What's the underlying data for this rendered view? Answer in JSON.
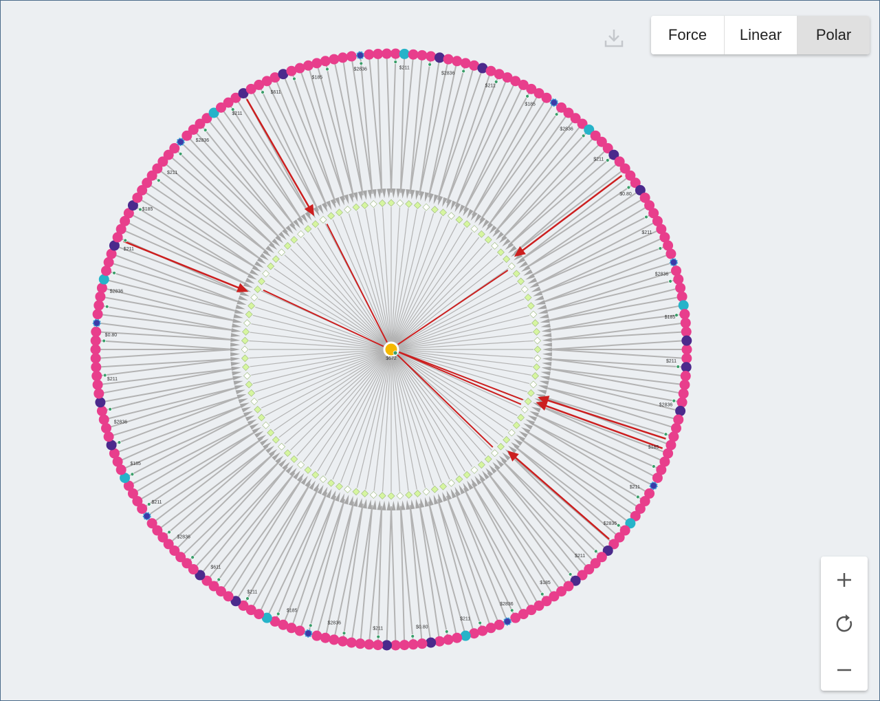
{
  "toolbar": {
    "buttons": [
      "Force",
      "Linear",
      "Polar"
    ],
    "active": 2
  },
  "graph": {
    "center_label": "$672",
    "node_labels": [
      "$211",
      "$2836",
      "$185",
      "$211",
      "$2836",
      "$211",
      "$185",
      "$2836",
      "$211",
      "$0.80",
      "$211",
      "$2836",
      "$185",
      "$211",
      "$611",
      "$2836",
      "$211",
      "$185",
      "$2836",
      "$211",
      "$0.80",
      "$2836",
      "$211",
      "$185",
      "$211",
      "$2836",
      "$211",
      "$611",
      "$185",
      "$2836",
      "$211",
      "$2836",
      "$211",
      "$185",
      "$2836",
      "$211",
      "$0.80",
      "$211",
      "$2836",
      "$185"
    ]
  }
}
